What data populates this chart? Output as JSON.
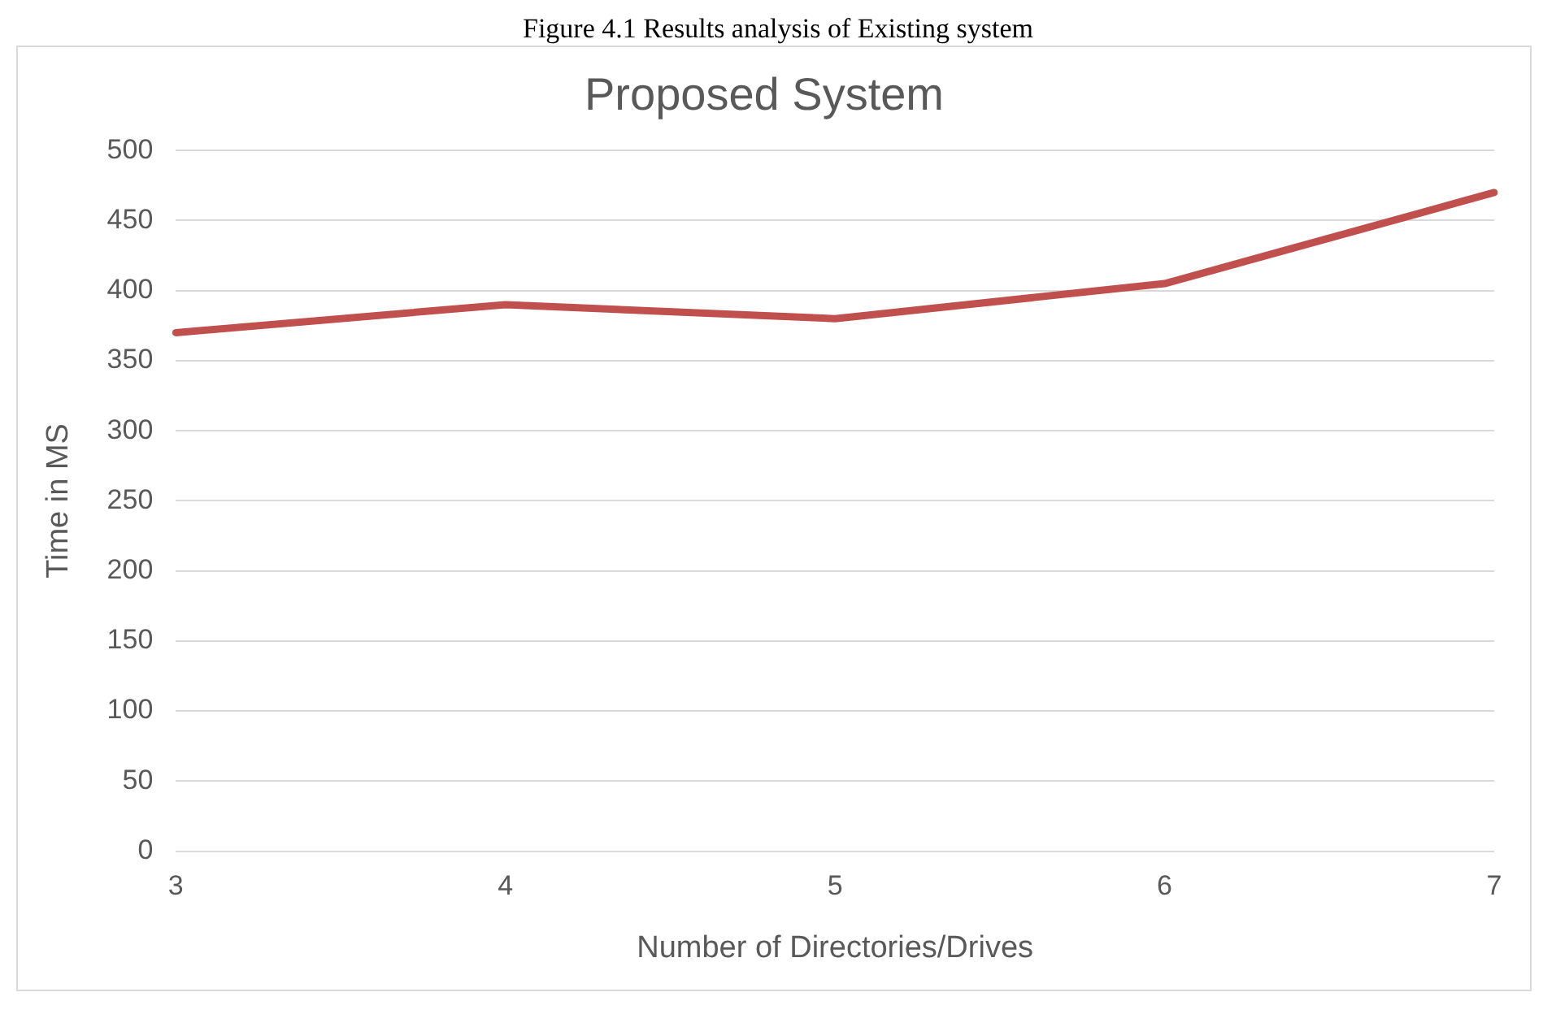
{
  "chart_data": {
    "type": "line",
    "title": "Proposed System",
    "xlabel": "Number of Directories/Drives",
    "ylabel": "Time in MS",
    "annotations": [
      "Figure 4.1 Results analysis of Existing system"
    ],
    "categories": [
      "3",
      "4",
      "5",
      "6",
      "7"
    ],
    "series": [
      {
        "color": "#c0504d",
        "values": [
          370,
          390,
          380,
          405,
          470
        ]
      }
    ],
    "ylim": [
      0,
      500
    ],
    "yticks": [
      0,
      50,
      100,
      150,
      200,
      250,
      300,
      350,
      400,
      450,
      500
    ],
    "grid": "y",
    "legend": false,
    "marker": "none",
    "line_style": "solid"
  }
}
